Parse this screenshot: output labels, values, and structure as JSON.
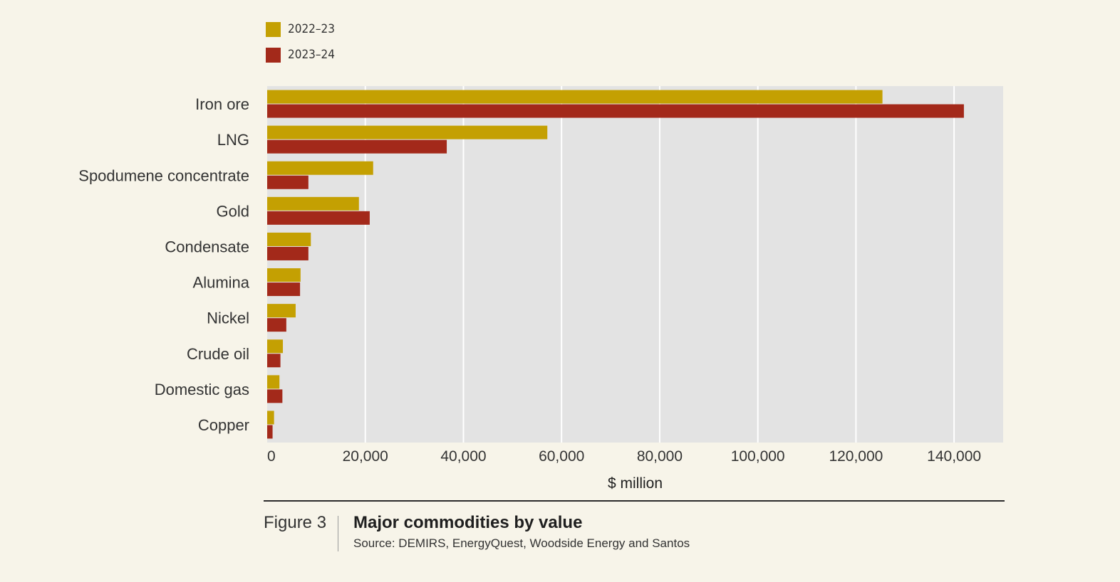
{
  "chart_data": {
    "type": "bar",
    "orientation": "horizontal",
    "categories": [
      "Iron ore",
      "LNG",
      "Spodumene concentrate",
      "Gold",
      "Condensate",
      "Alumina",
      "Nickel",
      "Crude oil",
      "Domestic gas",
      "Copper"
    ],
    "series": [
      {
        "name": "2022–23",
        "color": "#c4a002",
        "values": [
          125400,
          57100,
          21600,
          18700,
          8900,
          6800,
          5800,
          3200,
          2500,
          1400
        ]
      },
      {
        "name": "2023–24",
        "color": "#a3291a",
        "values": [
          142000,
          36600,
          8400,
          20900,
          8400,
          6700,
          3900,
          2700,
          3100,
          1100
        ]
      }
    ],
    "xlabel": "$ million",
    "xlim": [
      0,
      150000
    ],
    "xticks": [
      0,
      20000,
      40000,
      60000,
      80000,
      100000,
      120000,
      140000
    ],
    "xtick_labels": [
      "0",
      "20,000",
      "40,000",
      "60,000",
      "80,000",
      "100,000",
      "120,000",
      "140,000"
    ],
    "grid": true,
    "legend_position": "top-left",
    "plot_background": "#e3e3e3"
  },
  "caption": {
    "figure_label": "Figure 3",
    "title": "Major commodities by value",
    "source": "Source: DEMIRS, EnergyQuest, Woodside Energy and Santos"
  }
}
